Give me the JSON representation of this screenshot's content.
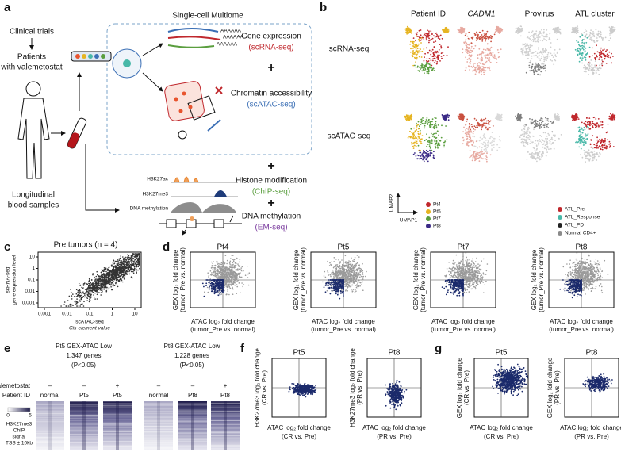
{
  "panels": {
    "a": {
      "label": "a",
      "clinical_trials": "Clinical trials",
      "patients": [
        "Patients",
        "with valemetostat"
      ],
      "samples": [
        "Longitudinal",
        "blood samples"
      ],
      "multiome_title": "Single-cell Multiome",
      "poly_a": "AAAAAA",
      "plus": "+",
      "gene_expression": "Gene expression",
      "scrna": "(scRNA-seq)",
      "chromatin": "Chromatin accessibility",
      "scatac": "(scATAC-seq)",
      "histone": "Histone modification",
      "chip": "(ChIP-seq)",
      "methylation": "DNA methylation",
      "em": "(EM-seq)",
      "tracks": [
        "H3K27ac",
        "H3K27me3",
        "DNA methylation"
      ]
    },
    "b": {
      "label": "b",
      "columns": [
        "Patient ID",
        "CADM1",
        "Provirus",
        "ATL cluster"
      ],
      "rows": [
        "scRNA-seq",
        "scATAC-seq"
      ],
      "umap_y": "UMAP2",
      "umap_x": "UMAP1",
      "patients": [
        {
          "name": "Pt4",
          "color": "#c0282d"
        },
        {
          "name": "Pt5",
          "color": "#e6b422"
        },
        {
          "name": "Pt7",
          "color": "#5a9e3e"
        },
        {
          "name": "Pt8",
          "color": "#3b2a86"
        }
      ],
      "clusters": [
        {
          "name": "ATL_Pre",
          "color": "#c0282d"
        },
        {
          "name": "ATL_Response",
          "color": "#48b8a8"
        },
        {
          "name": "ATL_PD",
          "color": "#222222"
        },
        {
          "name": "Normal CD4+",
          "color": "#8a8a8a"
        }
      ]
    },
    "c": {
      "label": "c",
      "title": "Pre tumors (n = 4)",
      "ylabel": [
        "scRNA-seq",
        "gene expression level"
      ],
      "xlabel": [
        "scATAC-seq",
        "Cis-element value"
      ],
      "xticks": [
        "0.001",
        "0.01",
        "0.1",
        "1",
        "10"
      ],
      "yticks": [
        "10",
        "1",
        "0.1",
        "0.01",
        "0.001"
      ]
    },
    "d": {
      "label": "d",
      "plots": [
        "Pt4",
        "Pt5",
        "Pt7",
        "Pt8"
      ],
      "ylabel": [
        "GEX log₂ fold change",
        "(tumor_Pre vs. normal)"
      ],
      "xlabel": [
        "ATAC log₂ fold change",
        "(tumor_Pre vs. normal)"
      ]
    },
    "e": {
      "label": "e",
      "groups": [
        {
          "title": "Pt5 GEX-ATAC Low",
          "genes": "1,347 genes",
          "p": "(P<0.05)",
          "columns": [
            "normal",
            "Pt5",
            "Pt5"
          ],
          "signs": [
            "–",
            "–",
            "+"
          ]
        },
        {
          "title": "Pt8 GEX-ATAC Low",
          "genes": "1,228 genes",
          "p": "(P<0.05)",
          "columns": [
            "normal",
            "Pt8",
            "Pt8"
          ],
          "signs": [
            "–",
            "–",
            "+"
          ]
        }
      ],
      "row_treatment": "Valemetostat",
      "row_patient": "Patient ID",
      "scale": [
        "0",
        "5"
      ],
      "legend": [
        "H3K27me3",
        "ChIP",
        "signal",
        "TSS ± 10kb"
      ]
    },
    "f": {
      "label": "f",
      "plots": [
        {
          "title": "Pt5",
          "ylabel": [
            "H3K27me3 log₂ fold change",
            "(CR vs. Pre)"
          ],
          "xlabel": [
            "ATAC log₂ fold change",
            "(CR vs. Pre)"
          ]
        },
        {
          "title": "Pt8",
          "ylabel": [
            "H3K27me3 log₂ fold change",
            "(PR vs. Pre)"
          ],
          "xlabel": [
            "ATAC log₂ fold change",
            "(PR vs. Pre)"
          ]
        }
      ]
    },
    "g": {
      "label": "g",
      "plots": [
        {
          "title": "Pt5",
          "ylabel": [
            "GEX log₂ fold change",
            "(CR vs. Pre)"
          ],
          "xlabel": [
            "ATAC log₂ fold change",
            "(CR vs. Pre)"
          ]
        },
        {
          "title": "Pt8",
          "ylabel": [
            "GEX log₂ fold change",
            "(PR vs. Pre)"
          ],
          "xlabel": [
            "ATAC log₂ fold change",
            "(PR vs. Pre)"
          ]
        }
      ]
    }
  }
}
